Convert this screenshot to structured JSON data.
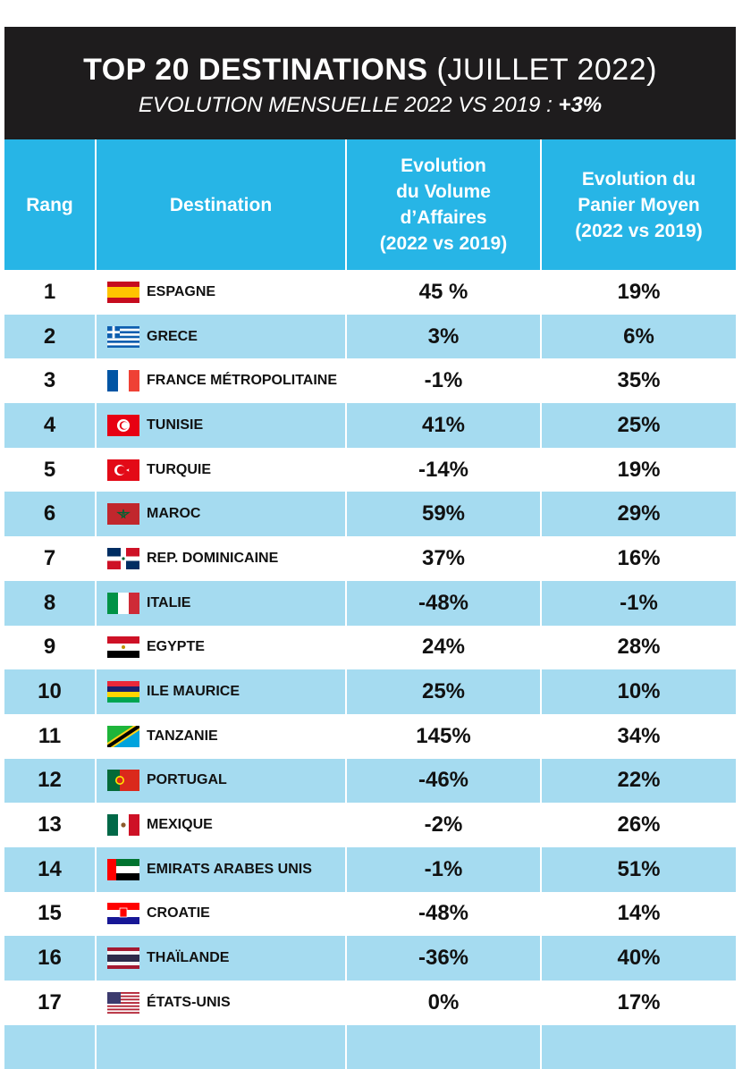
{
  "header": {
    "title_bold": "TOP 20 DESTINATIONS",
    "title_rest": "(JUILLET 2022)",
    "subtitle": "EVOLUTION MENSUELLE 2022 VS 2019 :",
    "subtitle_value": "+3%"
  },
  "columns": {
    "rank": "Rang",
    "destination": "Destination",
    "volume": [
      "Evolution",
      "du Volume",
      "d’Affaires",
      "(2022 vs 2019)"
    ],
    "basket": [
      "Evolution du",
      "Panier Moyen",
      "(2022 vs 2019)"
    ]
  },
  "rows": [
    {
      "rank": "1",
      "destination": "ESPAGNE",
      "volume": "45 %",
      "basket": "19%",
      "flag": "spain-flag-icon"
    },
    {
      "rank": "2",
      "destination": "GRECE",
      "volume": "3%",
      "basket": "6%",
      "flag": "greece-flag-icon"
    },
    {
      "rank": "3",
      "destination": "FRANCE MÉTROPOLITAINE",
      "volume": "-1%",
      "basket": "35%",
      "flag": "france-flag-icon"
    },
    {
      "rank": "4",
      "destination": "TUNISIE",
      "volume": "41%",
      "basket": "25%",
      "flag": "tunisia-flag-icon"
    },
    {
      "rank": "5",
      "destination": "TURQUIE",
      "volume": "-14%",
      "basket": "19%",
      "flag": "turkey-flag-icon"
    },
    {
      "rank": "6",
      "destination": "MAROC",
      "volume": "59%",
      "basket": "29%",
      "flag": "morocco-flag-icon"
    },
    {
      "rank": "7",
      "destination": "REP. DOMINICAINE",
      "volume": "37%",
      "basket": "16%",
      "flag": "dominican-republic-flag-icon"
    },
    {
      "rank": "8",
      "destination": "ITALIE",
      "volume": "-48%",
      "basket": "-1%",
      "flag": "italy-flag-icon"
    },
    {
      "rank": "9",
      "destination": "EGYPTE",
      "volume": "24%",
      "basket": "28%",
      "flag": "egypt-flag-icon"
    },
    {
      "rank": "10",
      "destination": "ILE MAURICE",
      "volume": "25%",
      "basket": "10%",
      "flag": "mauritius-flag-icon"
    },
    {
      "rank": "11",
      "destination": "TANZANIE",
      "volume": "145%",
      "basket": "34%",
      "flag": "tanzania-flag-icon"
    },
    {
      "rank": "12",
      "destination": "PORTUGAL",
      "volume": "-46%",
      "basket": "22%",
      "flag": "portugal-flag-icon"
    },
    {
      "rank": "13",
      "destination": "MEXIQUE",
      "volume": "-2%",
      "basket": "26%",
      "flag": "mexico-flag-icon"
    },
    {
      "rank": "14",
      "destination": "EMIRATS ARABES UNIS",
      "volume": "-1%",
      "basket": "51%",
      "flag": "uae-flag-icon"
    },
    {
      "rank": "15",
      "destination": "CROATIE",
      "volume": "-48%",
      "basket": "14%",
      "flag": "croatia-flag-icon"
    },
    {
      "rank": "16",
      "destination": "THAÏLANDE",
      "volume": "-36%",
      "basket": "40%",
      "flag": "thailand-flag-icon"
    },
    {
      "rank": "17",
      "destination": "ÉTATS-UNIS",
      "volume": "0%",
      "basket": "17%",
      "flag": "usa-flag-icon"
    }
  ],
  "colors": {
    "banner": "#1e1c1d",
    "header_blue": "#27b5e6",
    "stripe_blue": "#a5dbf0"
  }
}
